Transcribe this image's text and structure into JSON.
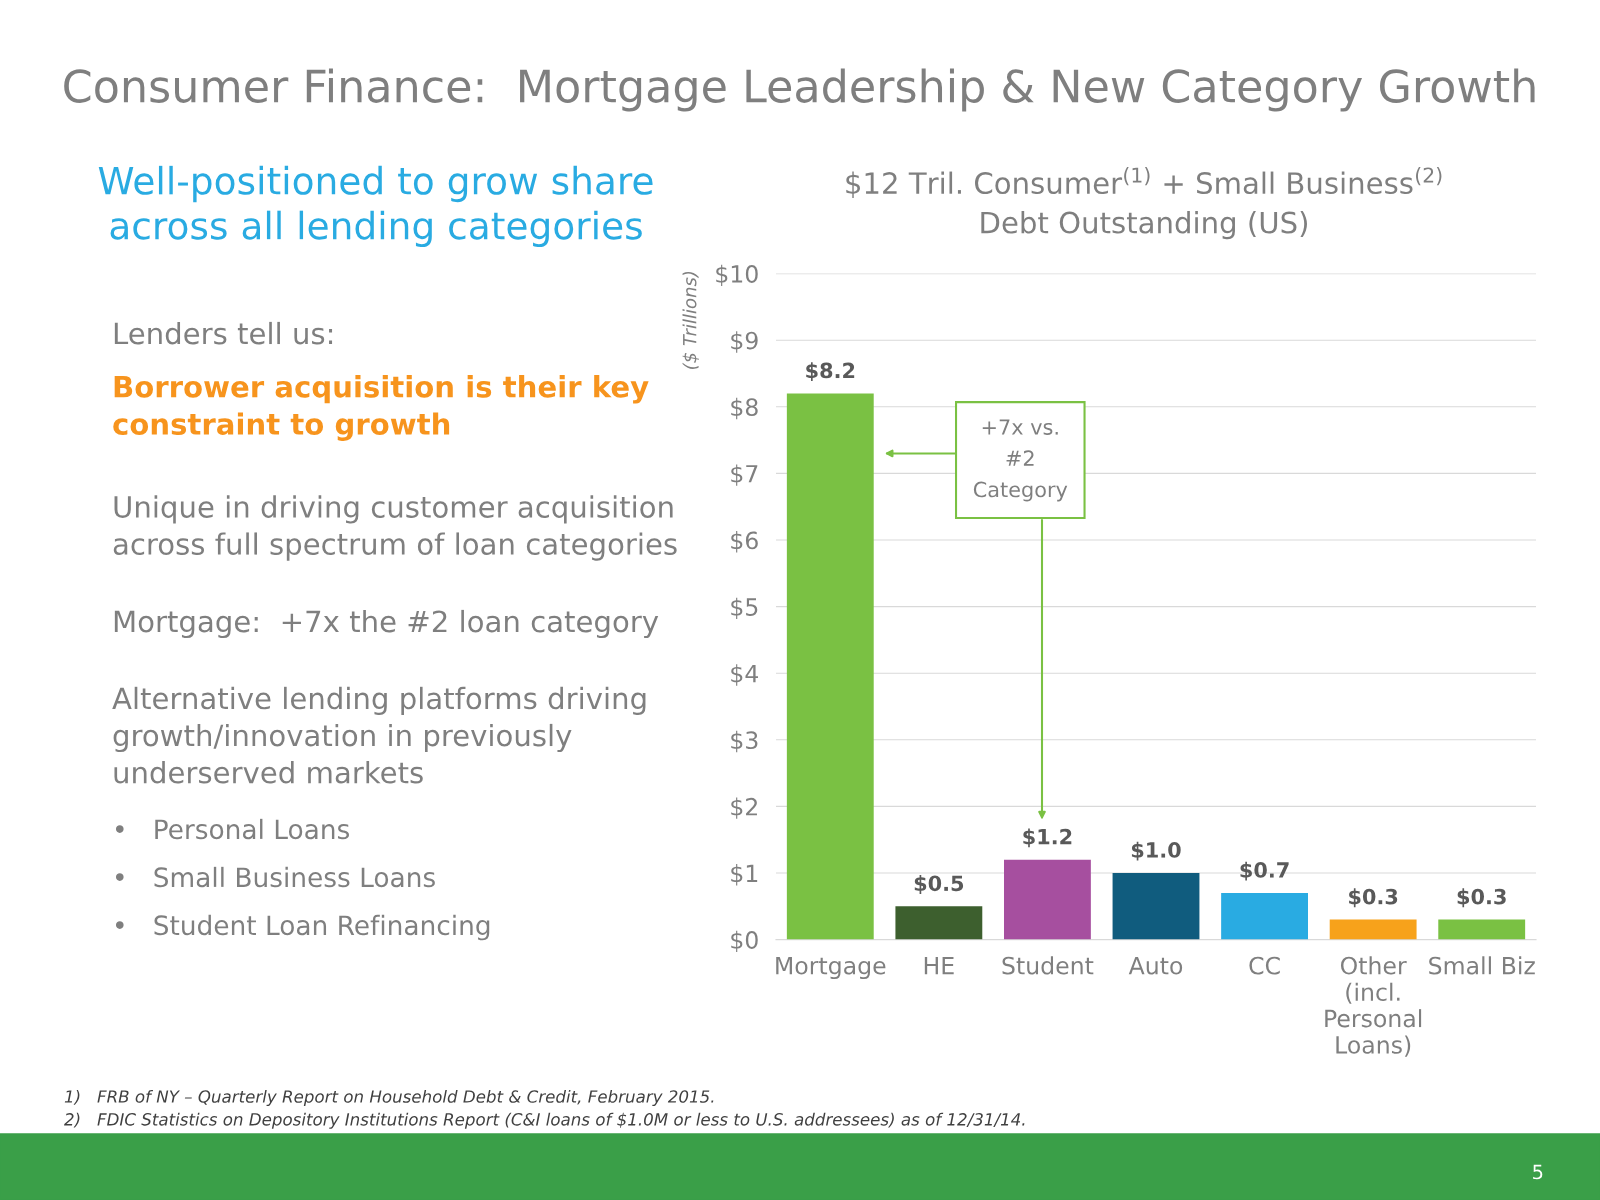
{
  "chart_data": {
    "type": "bar",
    "title": "Consumer Finance:  Mortgage Leadership & New Category Growth",
    "subtitle": "$12 Tril. Consumer$^{(1)}$ + Small Business$^{(2)}$\nDebt Outstanding (US)",
    "ylabel": "($ Trillions)",
    "categories": [
      "Mortgage",
      "HE",
      "Student",
      "Auto",
      "CC",
      "Other\n(incl.\nPersonal\nLoans)",
      "Small Biz"
    ],
    "values": [
      8.2,
      0.5,
      1.2,
      1.0,
      0.7,
      0.3,
      0.3
    ],
    "colors": [
      "#7ac143",
      "#3d5f2e",
      "#a64f9f",
      "#105c7e",
      "#29abe2",
      "#f7a21b",
      "#7ac143"
    ],
    "value_labels": [
      "$8.2",
      "$0.5",
      "$1.2",
      "$1.0",
      "$0.7",
      "$0.3",
      "$0.3"
    ],
    "ylim": [
      0,
      10
    ],
    "yticks": [
      {
        "value": 0,
        "label": "$0"
      },
      {
        "value": 1,
        "label": "$1"
      },
      {
        "value": 2,
        "label": "$2"
      },
      {
        "value": 3,
        "label": "$3"
      },
      {
        "value": 4,
        "label": "$4"
      },
      {
        "value": 5,
        "label": "$5"
      },
      {
        "value": 6,
        "label": "$6"
      },
      {
        "value": 7,
        "label": "$7"
      },
      {
        "value": 8,
        "label": "$8"
      },
      {
        "value": 9,
        "label": "$9"
      },
      {
        "value": 10,
        "label": "$10"
      }
    ],
    "grid": "y",
    "annotations": [
      "+7x vs.\n#2\nCategory",
      "Well-positioned to grow share\nacross all lending categories",
      "Lenders tell us:",
      "Borrower acquisition is their key\nconstraint to growth",
      "Unique in driving customer acquisition\nacross full spectrum of loan categories",
      "Mortgage:  +7x the #2 loan category",
      "Alternative lending platforms driving\ngrowth/innovation in previously\nunderserved markets",
      "•   Personal Loans",
      "•   Small Business Loans",
      "•   Student Loan Refinancing",
      "1)   FRB of NY – Quarterly Report on Household Debt & Credit, February 2015.",
      "2)   FDIC Statistics on Depository Institutions Report (C&I loans of $1.0M or less to U.S. addressees) as of 12/31/14.",
      "5"
    ]
  }
}
